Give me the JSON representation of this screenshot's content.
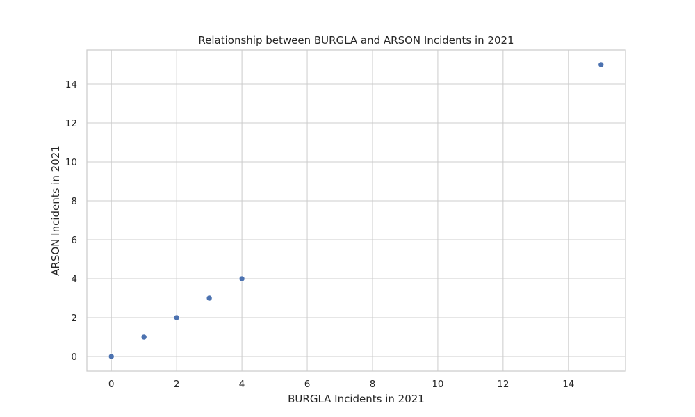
{
  "chart_data": {
    "type": "scatter",
    "title": "Relationship between BURGLA and ARSON Incidents in 2021",
    "xlabel": "BURGLA Incidents in 2021",
    "ylabel": "ARSON Incidents in 2021",
    "xlim": [
      -0.75,
      15.75
    ],
    "ylim": [
      -0.75,
      15.75
    ],
    "x_ticks": [
      "0",
      "2",
      "4",
      "6",
      "8",
      "10",
      "12",
      "14"
    ],
    "y_ticks": [
      "0",
      "2",
      "4",
      "6",
      "8",
      "10",
      "12",
      "14"
    ],
    "grid": true,
    "series": [
      {
        "color": "#4c72b0",
        "points": [
          {
            "x": 0,
            "y": 0
          },
          {
            "x": 1,
            "y": 1
          },
          {
            "x": 2,
            "y": 2
          },
          {
            "x": 3,
            "y": 3
          },
          {
            "x": 4,
            "y": 4
          },
          {
            "x": 15,
            "y": 15
          }
        ]
      }
    ]
  }
}
